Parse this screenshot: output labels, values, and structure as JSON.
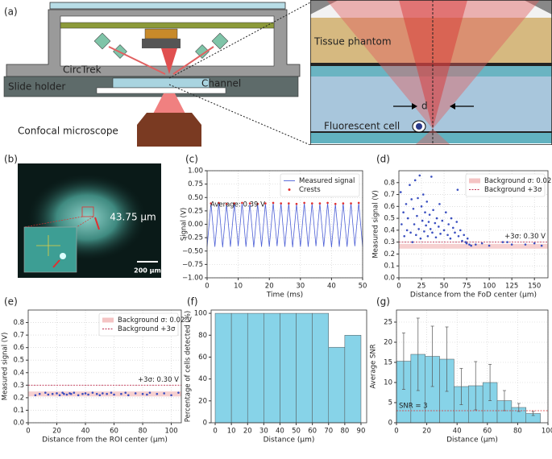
{
  "diagram": {
    "label": "(a)",
    "circtrek": "CircTrek",
    "slide_holder": "Slide holder",
    "channel": "Channel",
    "microscope": "Confocal microscope",
    "tissue": "Tissue phantom",
    "d": "d",
    "cell": "Fluorescent cell"
  },
  "image": {
    "label": "(b)",
    "annotation": "43.75 µm",
    "scale_bar": "200 µm"
  },
  "chart_data": [
    {
      "type": "line",
      "label": "(c)",
      "xlabel": "Time (ms)",
      "ylabel": "Signal (V)",
      "xlim": [
        0,
        50
      ],
      "xticks": [
        0,
        10,
        20,
        30,
        40,
        50
      ],
      "ylim": [
        -1,
        1
      ],
      "yticks": [
        {
          "value": -1,
          "label": "−1.00"
        },
        {
          "value": -0.75,
          "label": "−0.75"
        },
        {
          "value": -0.5,
          "label": "−0.50"
        },
        {
          "value": -0.25,
          "label": "−0.25"
        },
        {
          "value": 0,
          "label": "0.00"
        },
        {
          "value": 0.25,
          "label": "0.25"
        },
        {
          "value": 0.5,
          "label": "0.50"
        },
        {
          "value": 0.75,
          "label": "0.75"
        },
        {
          "value": 1,
          "label": "1.00"
        }
      ],
      "grid": true,
      "legend": "upper right",
      "annotation": "Average: 0.39 V",
      "series": [
        {
          "name": "Measured signal",
          "type": "line",
          "color": "#4c5fd6",
          "x": [
            0,
            1.25,
            2.5,
            3.75,
            5,
            6.25,
            7.5,
            8.75,
            10,
            11.25,
            12.5,
            13.75,
            15,
            16.25,
            17.5,
            18.75,
            20,
            21.25,
            22.5,
            23.75,
            25,
            26.25,
            27.5,
            28.75,
            30,
            31.25,
            32.5,
            33.75,
            35,
            36.25,
            37.5,
            38.75,
            40,
            41.25,
            42.5,
            43.75,
            45,
            46.25,
            47.5,
            48.75,
            50
          ],
          "values": [
            -0.42,
            0.39,
            -0.42,
            0.4,
            -0.43,
            0.38,
            -0.42,
            0.39,
            -0.41,
            0.4,
            -0.42,
            0.39,
            -0.43,
            0.38,
            -0.42,
            0.39,
            -0.42,
            0.4,
            -0.41,
            0.39,
            -0.42,
            0.39,
            -0.43,
            0.38,
            -0.42,
            0.4,
            -0.42,
            0.39,
            -0.41,
            0.39,
            -0.42,
            0.4,
            -0.43,
            0.38,
            -0.42,
            0.39,
            -0.42,
            0.39,
            -0.41,
            0.4,
            -0.42
          ]
        },
        {
          "name": "Crests",
          "type": "scatter",
          "color": "#e03030",
          "x": [
            1.25,
            3.75,
            6.25,
            8.75,
            11.25,
            13.75,
            16.25,
            18.75,
            21.25,
            23.75,
            26.25,
            28.75,
            31.25,
            33.75,
            36.25,
            38.75,
            41.25,
            43.75,
            46.25,
            48.75
          ],
          "values": [
            0.39,
            0.4,
            0.38,
            0.39,
            0.4,
            0.39,
            0.38,
            0.39,
            0.4,
            0.39,
            0.39,
            0.38,
            0.4,
            0.39,
            0.39,
            0.4,
            0.38,
            0.39,
            0.39,
            0.4
          ]
        }
      ]
    },
    {
      "type": "scatter",
      "label": "(d)",
      "xlabel": "Distance from the FoD center (µm)",
      "ylabel": "Measured signal (V)",
      "xlim": [
        0,
        165
      ],
      "xticks": [
        0,
        25,
        50,
        75,
        100,
        125,
        150
      ],
      "ylim": [
        0,
        0.9
      ],
      "yticks": [
        {
          "value": 0,
          "label": "0.0"
        },
        0.1,
        0.2,
        0.3,
        0.4,
        0.5,
        0.6,
        0.7,
        0.8
      ],
      "grid": true,
      "legend": "upper right",
      "annotation": "+3σ: 0.30 V",
      "bands": [
        {
          "name": "Background σ: 0.02 V",
          "color": "#f4c4c4",
          "range": [
            0.245,
            0.285
          ]
        }
      ],
      "hlines": [
        {
          "name": "Background +3σ",
          "color": "#c03050",
          "value": 0.3
        }
      ],
      "series": [
        {
          "type": "scatter",
          "color": "#3a4fc0",
          "x": [
            2,
            3,
            5,
            6,
            8,
            9,
            10,
            12,
            13,
            14,
            15,
            16,
            17,
            18,
            19,
            20,
            21,
            22,
            23,
            24,
            25,
            26,
            27,
            28,
            29,
            30,
            31,
            32,
            33,
            34,
            35,
            36,
            37,
            38,
            40,
            41,
            42,
            44,
            45,
            46,
            48,
            50,
            52,
            54,
            55,
            57,
            58,
            60,
            62,
            64,
            65,
            66,
            68,
            70,
            72,
            74,
            75,
            76,
            78,
            80,
            85,
            92,
            100,
            115,
            120,
            125,
            140,
            150,
            158
          ],
          "values": [
            0.72,
            0.45,
            0.55,
            0.35,
            0.62,
            0.4,
            0.5,
            0.78,
            0.38,
            0.66,
            0.3,
            0.58,
            0.45,
            0.82,
            0.36,
            0.52,
            0.67,
            0.41,
            0.86,
            0.33,
            0.6,
            0.48,
            0.7,
            0.39,
            0.55,
            0.44,
            0.64,
            0.35,
            0.47,
            0.53,
            0.41,
            0.85,
            0.38,
            0.57,
            0.46,
            0.34,
            0.5,
            0.43,
            0.62,
            0.37,
            0.48,
            0.4,
            0.55,
            0.36,
            0.45,
            0.33,
            0.5,
            0.42,
            0.38,
            0.47,
            0.74,
            0.35,
            0.4,
            0.31,
            0.36,
            0.3,
            0.29,
            0.33,
            0.28,
            0.27,
            0.28,
            0.29,
            0.27,
            0.3,
            0.3,
            0.28,
            0.28,
            0.29,
            0.27
          ]
        }
      ]
    },
    {
      "type": "scatter",
      "label": "(e)",
      "xlabel": "Distance from the ROI center (µm)",
      "ylabel": "Measured signal (V)",
      "xlim": [
        0,
        107
      ],
      "xticks": [
        0,
        20,
        40,
        60,
        80,
        100
      ],
      "ylim": [
        0,
        0.9
      ],
      "yticks": [
        {
          "value": 0,
          "label": "0.0"
        },
        0.1,
        0.2,
        0.3,
        0.4,
        0.5,
        0.6,
        0.7,
        0.8
      ],
      "grid": true,
      "legend": "upper right",
      "annotation": "+3σ: 0.30 V",
      "bands": [
        {
          "name": "Background σ: 0.02 V",
          "color": "#f4c4c4",
          "range": [
            0.21,
            0.25
          ]
        }
      ],
      "hlines": [
        {
          "name": "Background +3σ",
          "color": "#c03050",
          "value": 0.3
        }
      ],
      "series": [
        {
          "type": "scatter",
          "color": "#3a4fc0",
          "x": [
            5,
            8,
            12,
            14,
            17,
            20,
            22,
            24,
            25,
            27,
            29,
            30,
            32,
            35,
            38,
            40,
            42,
            45,
            48,
            50,
            52,
            55,
            58,
            60,
            65,
            68,
            70,
            75,
            80,
            83,
            85,
            90,
            95,
            100,
            105
          ],
          "values": [
            0.22,
            0.23,
            0.24,
            0.225,
            0.23,
            0.235,
            0.22,
            0.24,
            0.23,
            0.225,
            0.235,
            0.23,
            0.24,
            0.22,
            0.23,
            0.235,
            0.225,
            0.24,
            0.23,
            0.22,
            0.235,
            0.23,
            0.24,
            0.225,
            0.23,
            0.24,
            0.22,
            0.235,
            0.23,
            0.225,
            0.24,
            0.23,
            0.235,
            0.22,
            0.24
          ]
        }
      ]
    },
    {
      "type": "histogram",
      "label": "(f)",
      "xlabel": "Distance (µm)",
      "ylabel": "Percentage of cells detected (%)",
      "xlim": [
        -2.5,
        93.5
      ],
      "xticks": [
        0,
        10,
        20,
        30,
        40,
        50,
        60,
        70,
        80,
        90
      ],
      "ylim": [
        0,
        103
      ],
      "yticks": [
        0,
        20,
        40,
        60,
        80,
        100
      ],
      "grid": false,
      "color": "#87d3e8",
      "bins": [
        0,
        10,
        20,
        30,
        40,
        50,
        60,
        70,
        80,
        90
      ],
      "values": [
        100,
        100,
        100,
        100,
        100,
        100,
        100,
        69,
        80
      ]
    },
    {
      "type": "histogram",
      "label": "(g)",
      "xlabel": "Distance (µm)",
      "ylabel": "Average SNR",
      "xlim": [
        0,
        100
      ],
      "xticks": [
        0,
        20,
        40,
        60,
        80,
        100
      ],
      "ylim": [
        0,
        28
      ],
      "yticks": [
        0,
        5,
        10,
        15,
        20,
        25
      ],
      "grid": true,
      "color": "#87d3e8",
      "bins": [
        0,
        9.5,
        19,
        28.5,
        38,
        47.5,
        57,
        66.5,
        76,
        85.5,
        95
      ],
      "values": [
        15.3,
        17,
        16.5,
        15.8,
        9,
        9.2,
        10,
        5.5,
        3.8,
        2.3
      ],
      "errors": [
        7,
        9,
        7.5,
        8,
        4.5,
        6,
        4.5,
        2.5,
        1,
        0.5
      ],
      "hlines": [
        {
          "label": "SNR = 3",
          "color": "#e03030",
          "value": 3
        }
      ]
    }
  ]
}
